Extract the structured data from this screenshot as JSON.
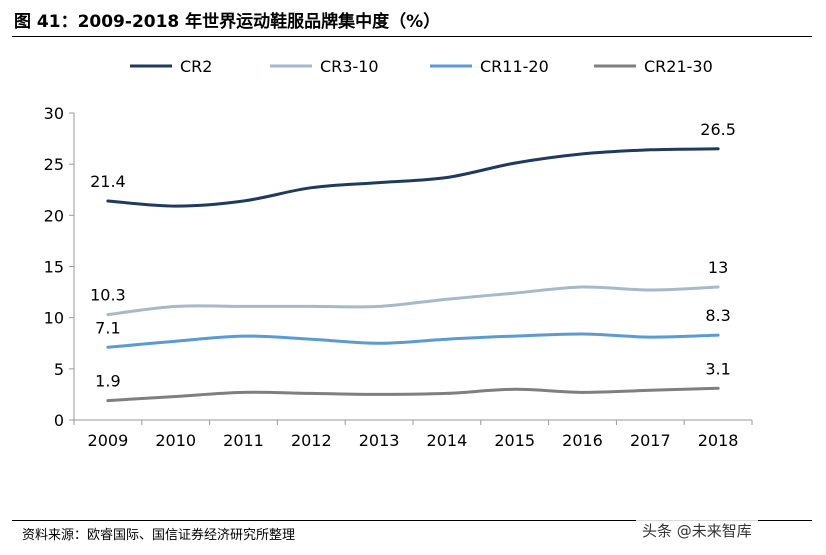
{
  "header": {
    "title": "图 41：2009-2018 年世界运动鞋服品牌集中度（%）"
  },
  "footer": {
    "source": "资料来源：欧睿国际、国信证券经济研究所整理",
    "watermark": "头条 @未来智库"
  },
  "chart_data": {
    "type": "line",
    "title": "",
    "xlabel": "",
    "ylabel": "",
    "x": [
      "2009",
      "2010",
      "2011",
      "2012",
      "2013",
      "2014",
      "2015",
      "2016",
      "2017",
      "2018"
    ],
    "ylim": [
      0,
      30
    ],
    "yticks": [
      0,
      5,
      10,
      15,
      20,
      25,
      30
    ],
    "legend_position": "top",
    "series": [
      {
        "name": "CR2",
        "color": "#1f3a5f",
        "values": [
          21.4,
          20.9,
          21.4,
          22.7,
          23.2,
          23.7,
          25.1,
          26.0,
          26.4,
          26.5
        ],
        "labels": {
          "0": "21.4",
          "9": "26.5"
        }
      },
      {
        "name": "CR3-10",
        "color": "#a6b9c9",
        "values": [
          10.3,
          11.1,
          11.1,
          11.1,
          11.1,
          11.8,
          12.4,
          13.0,
          12.7,
          13.0
        ],
        "labels": {
          "0": "10.3",
          "9": "13"
        }
      },
      {
        "name": "CR11-20",
        "color": "#5b9bd5",
        "values": [
          7.1,
          7.7,
          8.2,
          7.9,
          7.5,
          7.9,
          8.2,
          8.4,
          8.1,
          8.3
        ],
        "labels": {
          "0": "7.1",
          "9": "8.3"
        }
      },
      {
        "name": "CR21-30",
        "color": "#7f7f7f",
        "values": [
          1.9,
          2.3,
          2.7,
          2.6,
          2.5,
          2.6,
          3.0,
          2.7,
          2.9,
          3.1
        ],
        "labels": {
          "0": "1.9",
          "9": "3.1"
        }
      }
    ]
  }
}
